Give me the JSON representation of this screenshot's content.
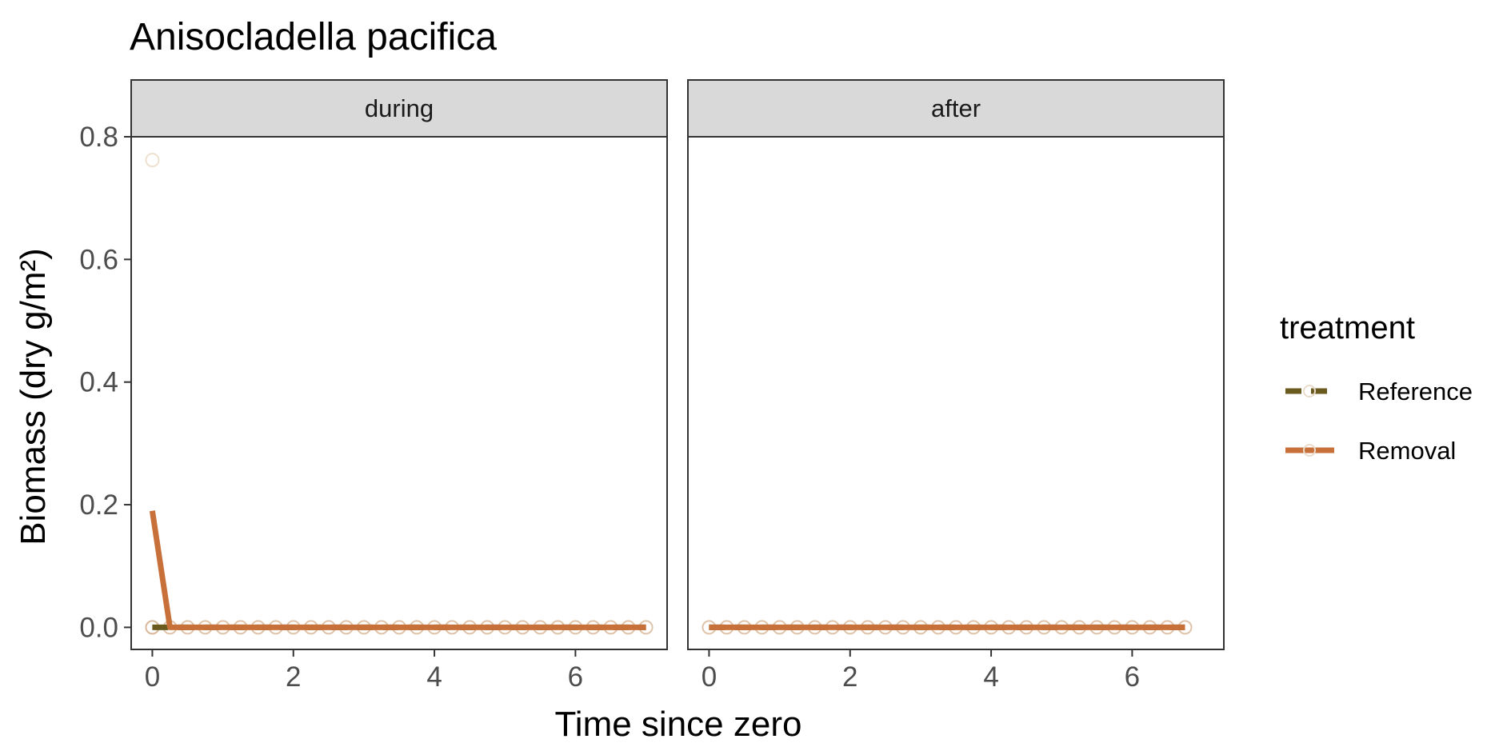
{
  "chart_data": {
    "type": "line",
    "title": "Anisocladella pacifica",
    "xlabel": "Time since zero",
    "ylabel": "Biomass (dry g/m²)",
    "xlim": [
      -0.3,
      7.3
    ],
    "ylim": [
      -0.036,
      0.8
    ],
    "x_ticks": [
      "0",
      "2",
      "4",
      "6"
    ],
    "x_tick_values": [
      0,
      2,
      4,
      6
    ],
    "y_ticks": [
      "0.0",
      "0.2",
      "0.4",
      "0.6",
      "0.8"
    ],
    "y_tick_values": [
      0,
      0.2,
      0.4,
      0.6,
      0.8
    ],
    "legend": {
      "title": "treatment",
      "position": "right",
      "entries": [
        {
          "name": "Reference",
          "color": "#6b5a1e",
          "dash": "dashed"
        },
        {
          "name": "Removal",
          "color": "#c8703a",
          "dash": "solid"
        }
      ]
    },
    "panels": [
      {
        "label": "during",
        "series": [
          {
            "name": "Reference",
            "x": [
              0,
              7
            ],
            "y": [
              0,
              0
            ]
          },
          {
            "name": "Removal",
            "x": [
              0,
              0.25,
              0.5,
              0.75,
              1,
              1.25,
              1.5,
              1.75,
              2,
              2.25,
              2.5,
              2.75,
              3,
              3.25,
              3.5,
              3.75,
              4,
              4.25,
              4.5,
              4.75,
              5,
              5.25,
              5.5,
              5.75,
              6,
              6.25,
              6.5,
              6.75,
              7
            ],
            "y": [
              0.19,
              0,
              0,
              0,
              0,
              0,
              0,
              0,
              0,
              0,
              0,
              0,
              0,
              0,
              0,
              0,
              0,
              0,
              0,
              0,
              0,
              0,
              0,
              0,
              0,
              0,
              0,
              0,
              0
            ]
          }
        ],
        "points": {
          "x": [
            0,
            0,
            0.25,
            0.5,
            0.75,
            1,
            1.25,
            1.5,
            1.75,
            2,
            2.25,
            2.5,
            2.75,
            3,
            3.25,
            3.5,
            3.75,
            4,
            4.25,
            4.5,
            4.75,
            5,
            5.25,
            5.5,
            5.75,
            6,
            6.25,
            6.5,
            6.75,
            7,
            0
          ],
          "y": [
            0,
            0,
            0,
            0,
            0,
            0,
            0,
            0,
            0,
            0,
            0,
            0,
            0,
            0,
            0,
            0,
            0,
            0,
            0,
            0,
            0,
            0,
            0,
            0,
            0,
            0,
            0,
            0,
            0,
            0,
            0.762
          ]
        }
      },
      {
        "label": "after",
        "series": [
          {
            "name": "Reference",
            "x": [
              0,
              6.75
            ],
            "y": [
              0,
              0
            ]
          },
          {
            "name": "Removal",
            "x": [
              0,
              0.25,
              0.5,
              0.75,
              1,
              1.25,
              1.5,
              1.75,
              2,
              2.25,
              2.5,
              2.75,
              3,
              3.25,
              3.5,
              3.75,
              4,
              4.25,
              4.5,
              4.75,
              5,
              5.25,
              5.5,
              5.75,
              6,
              6.25,
              6.5,
              6.75
            ],
            "y": [
              0,
              0,
              0,
              0,
              0,
              0,
              0,
              0,
              0,
              0,
              0,
              0,
              0,
              0,
              0,
              0,
              0,
              0,
              0,
              0,
              0,
              0,
              0,
              0,
              0,
              0,
              0,
              0
            ]
          }
        ],
        "points": {
          "x": [
            0,
            0.25,
            0.5,
            0.75,
            1,
            1.25,
            1.5,
            1.75,
            2,
            2.25,
            2.5,
            2.75,
            3,
            3.25,
            3.5,
            3.75,
            4,
            4.25,
            4.5,
            4.75,
            5,
            5.25,
            5.5,
            5.75,
            6,
            6.25,
            6.5,
            6.75
          ],
          "y": [
            0,
            0,
            0,
            0,
            0,
            0,
            0,
            0,
            0,
            0,
            0,
            0,
            0,
            0,
            0,
            0,
            0,
            0,
            0,
            0,
            0,
            0,
            0,
            0,
            0,
            0,
            0,
            0
          ]
        }
      }
    ]
  }
}
